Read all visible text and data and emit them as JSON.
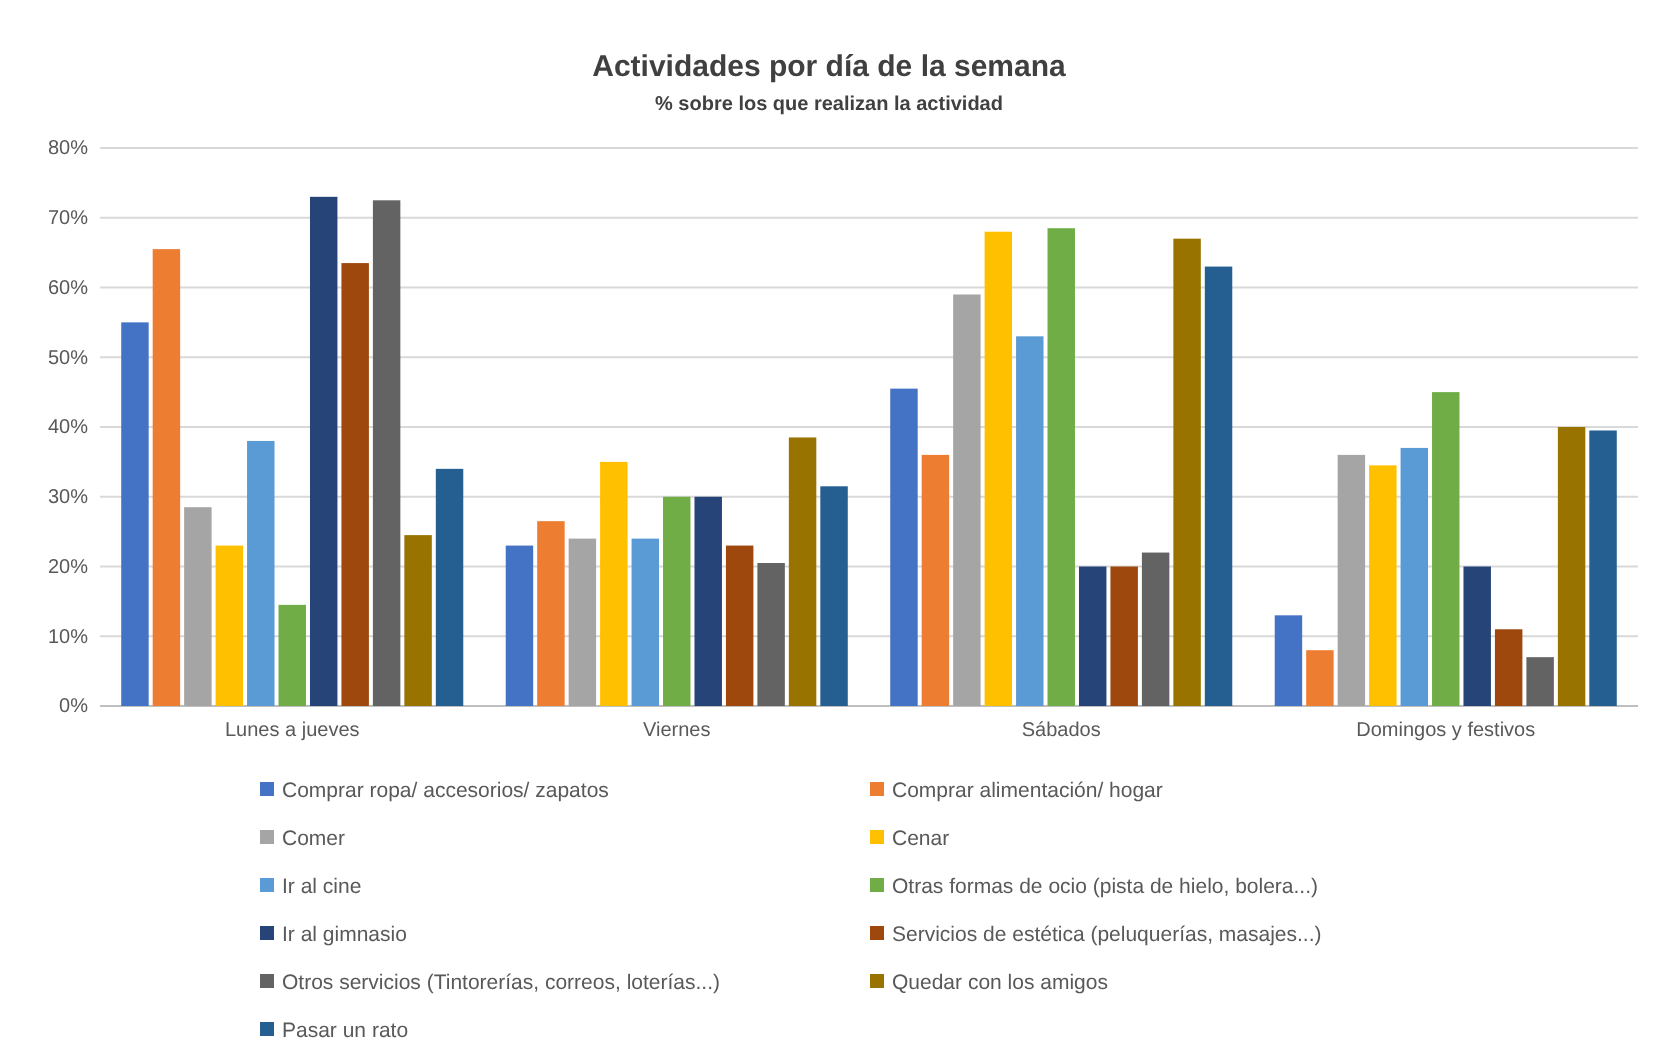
{
  "chart_data": {
    "type": "bar",
    "title": "Actividades por día de la semana",
    "subtitle": "% sobre los que realizan la actividad",
    "categories": [
      "Lunes a jueves",
      "Viernes",
      "Sábados",
      "Domingos y festivos"
    ],
    "ylim": [
      0,
      80
    ],
    "yticks": [
      {
        "value": 0,
        "label": "0%"
      },
      {
        "value": 10,
        "label": "10%"
      },
      {
        "value": 20,
        "label": "20%"
      },
      {
        "value": 30,
        "label": "30%"
      },
      {
        "value": 40,
        "label": "40%"
      },
      {
        "value": 50,
        "label": "50%"
      },
      {
        "value": 60,
        "label": "60%"
      },
      {
        "value": 70,
        "label": "70%"
      },
      {
        "value": 80,
        "label": "80%"
      }
    ],
    "grid": "y",
    "legend": "bottom",
    "series": [
      {
        "name": "Comprar ropa/ accesorios/ zapatos",
        "color": "#4472c4",
        "values": [
          55,
          23,
          45.5,
          13
        ]
      },
      {
        "name": "Comprar alimentación/ hogar",
        "color": "#ed7d31",
        "values": [
          65.5,
          26.5,
          36,
          8
        ]
      },
      {
        "name": "Comer",
        "color": "#a5a5a5",
        "values": [
          28.5,
          24,
          59,
          36
        ]
      },
      {
        "name": "Cenar",
        "color": "#ffc000",
        "values": [
          23,
          35,
          68,
          34.5
        ]
      },
      {
        "name": "Ir al cine",
        "color": "#5b9bd5",
        "values": [
          38,
          24,
          53,
          37
        ]
      },
      {
        "name": "Otras formas de ocio (pista de hielo, bolera...)",
        "color": "#70ad47",
        "values": [
          14.5,
          30,
          68.5,
          45
        ]
      },
      {
        "name": "Ir al gimnasio",
        "color": "#264478",
        "values": [
          73,
          30,
          20,
          20
        ]
      },
      {
        "name": "Servicios de estética (peluquerías, masajes...)",
        "color": "#9e480e",
        "values": [
          63.5,
          23,
          20,
          11
        ]
      },
      {
        "name": "Otros servicios (Tintorerías, correos, loterías...)",
        "color": "#636363",
        "values": [
          72.5,
          20.5,
          22,
          7
        ]
      },
      {
        "name": "Quedar con los amigos",
        "color": "#997300",
        "values": [
          24.5,
          38.5,
          67,
          40
        ]
      },
      {
        "name": "Pasar un rato",
        "color": "#255e91",
        "values": [
          34,
          31.5,
          63,
          39.5
        ]
      }
    ]
  }
}
